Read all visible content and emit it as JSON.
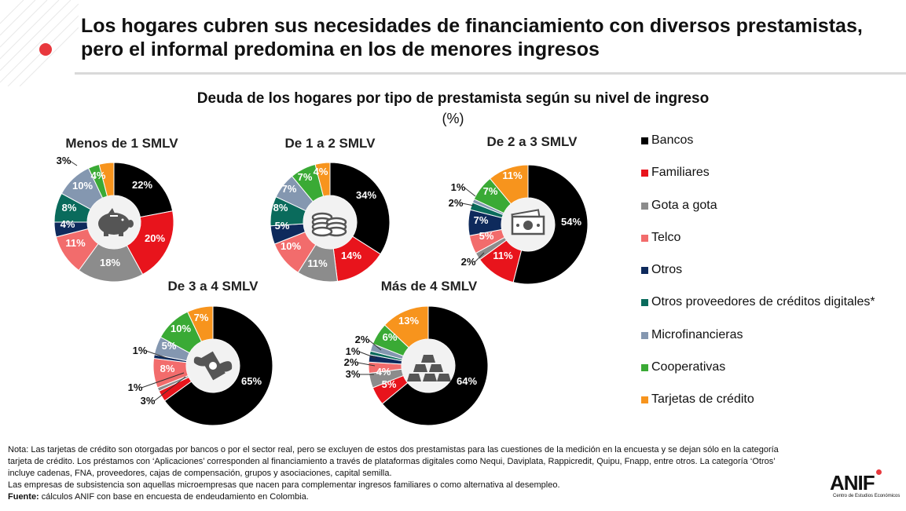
{
  "header": {
    "title": "Los hogares cubren sus necesidades de financiamiento con diversos prestamistas, pero el informal predomina en los de menores ingresos",
    "accent_color": "#e8383d"
  },
  "chart_data": {
    "type": "pie",
    "title": "Deuda de los hogares por tipo de prestamista según su nivel de ingreso",
    "unit": "(%)",
    "legend_position": "right",
    "categories": [
      "Bancos",
      "Familiares",
      "Gota a gota",
      "Telco",
      "Otros",
      "Otros proveedores de créditos digitales*",
      "Microfinancieras",
      "Cooperativas",
      "Tarjetas de crédito"
    ],
    "colors": [
      "#000000",
      "#e8141c",
      "#8c8c8c",
      "#f26c6c",
      "#0e2a5c",
      "#0a6b5c",
      "#8497b0",
      "#3aaa35",
      "#f7941d"
    ],
    "series": [
      {
        "name": "Menos de 1 SMLV",
        "icon": "piggy-bank-icon",
        "values": [
          22,
          20,
          18,
          11,
          4,
          8,
          10,
          3,
          4
        ],
        "labels": [
          "22%",
          "20%",
          "18%",
          "11%",
          "4%",
          "8%",
          "10%",
          "3%",
          "4%"
        ]
      },
      {
        "name": "De 1 a 2 SMLV",
        "icon": "coins-icon",
        "values": [
          34,
          14,
          11,
          10,
          5,
          8,
          7,
          7,
          4
        ],
        "labels": [
          "34%",
          "14%",
          "11%",
          "10%",
          "5%",
          "8%",
          "7%",
          "7%",
          "4%"
        ]
      },
      {
        "name": "De 2 a 3 SMLV",
        "icon": "banknote-icon",
        "values": [
          54,
          11,
          2,
          5,
          7,
          2,
          1,
          7,
          11
        ],
        "labels": [
          "54%",
          "11%",
          "2%",
          "5%",
          "7%",
          "2%",
          "1%",
          "7%",
          "11%"
        ]
      },
      {
        "name": "De 3 a 4 SMLV",
        "icon": "flying-money-icon",
        "values": [
          65,
          3,
          1,
          8,
          1,
          0,
          5,
          10,
          7
        ],
        "labels": [
          "65%",
          "3%",
          "1%",
          "8%",
          "1%",
          "",
          "5%",
          "10%",
          "7%"
        ]
      },
      {
        "name": "Más de 4 SMLV",
        "icon": "gold-bars-icon",
        "values": [
          64,
          5,
          4,
          3,
          2,
          1,
          2,
          6,
          13
        ],
        "labels": [
          "64%",
          "5%",
          "4%",
          "3%",
          "2%",
          "1%",
          "2%",
          "6%",
          "13%"
        ]
      }
    ]
  },
  "notes": {
    "nota": "Nota: Las tarjetas de crédito son otorgadas por bancos o por el sector real, pero se excluyen de estos dos prestamistas para las cuestiones de la medición en la encuesta y se dejan sólo en la categoría tarjeta de crédito. Los préstamos con ‘Aplicaciones’ corresponden al financiamiento a través de plataformas digitales como Nequi, Daviplata, Rappicredit, Quipu, Fnapp, entre otros. La categoría ‘Otros’ incluye cadenas, FNA, proveedores, cajas de compensación, grupos y asociaciones, capital semilla.",
    "subsistencia": "Las empresas de subsistencia son aquellas microempresas que nacen para complementar ingresos familiares o como alternativa al desempleo.",
    "fuente_label": "Fuente:",
    "fuente_text": " cálculos ANIF con base en encuesta de endeudamiento en Colombia."
  },
  "logo": {
    "name": "ANIF",
    "subtitle": "Centro de Estudios Económicos"
  }
}
